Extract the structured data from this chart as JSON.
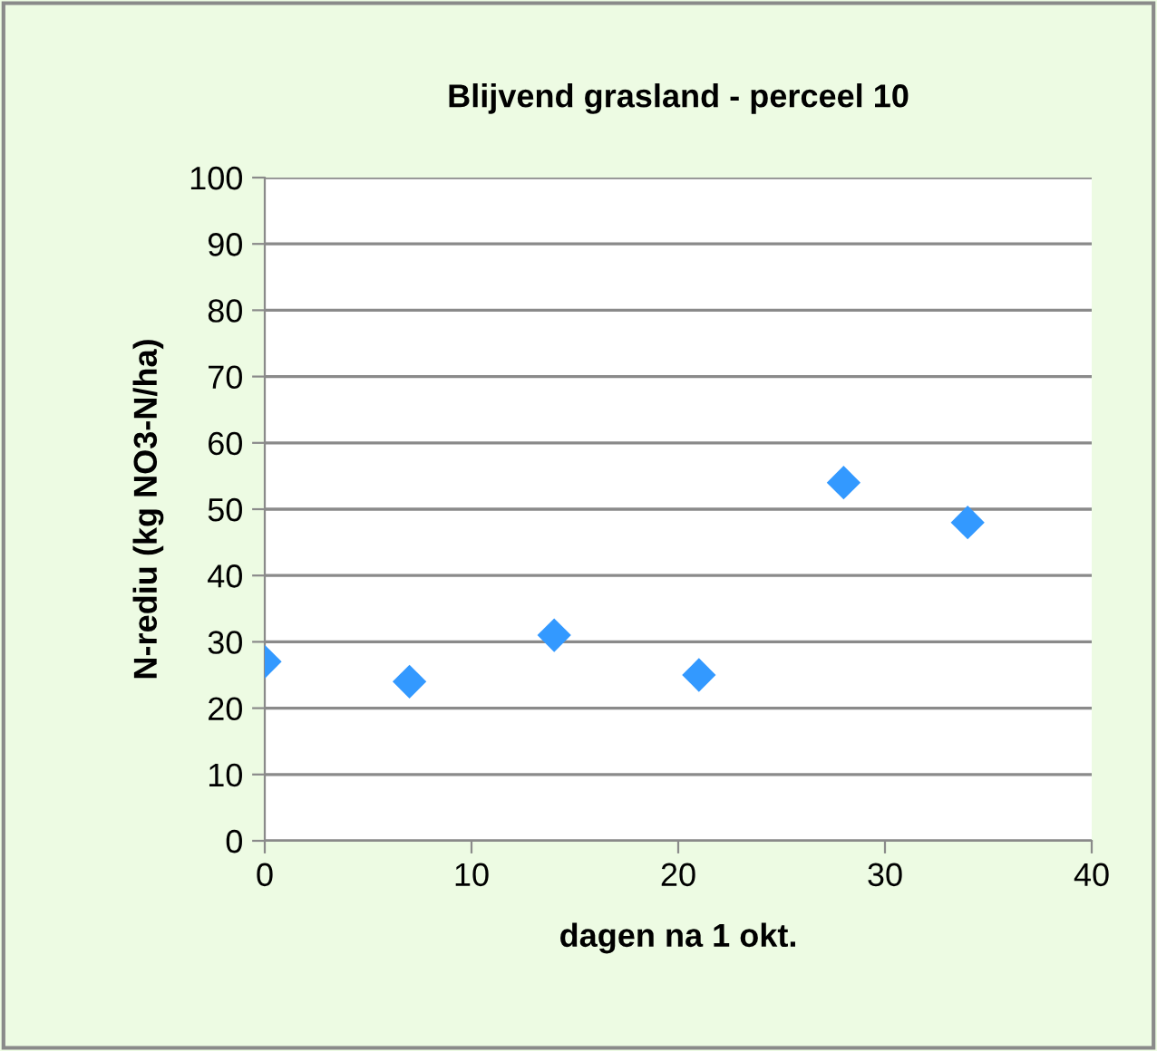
{
  "chart_data": {
    "type": "scatter",
    "title": "Blijvend grasland - perceel 10",
    "xlabel": "dagen na 1 okt.",
    "ylabel": "N-rediu (kg NO3-N/ha)",
    "x": [
      0,
      7,
      14,
      21,
      28,
      34
    ],
    "series": [
      {
        "color": "#3399ff",
        "values": [
          27,
          24,
          31,
          25,
          54,
          48
        ]
      }
    ],
    "xlim": [
      0,
      40
    ],
    "xticks": [
      0,
      10,
      20,
      30,
      40
    ],
    "ylim": [
      0,
      100
    ],
    "yticks": [
      0,
      10,
      20,
      30,
      40,
      50,
      60,
      70,
      80,
      90,
      100
    ],
    "grid": "y",
    "marker": "diamond",
    "legend": false
  }
}
